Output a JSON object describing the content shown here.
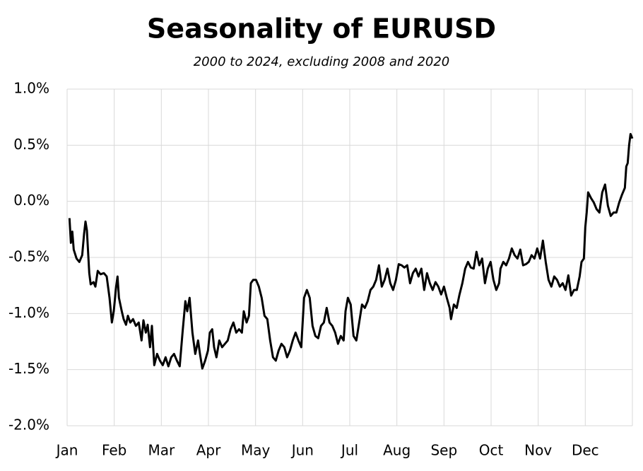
{
  "chart_data": {
    "type": "line",
    "title": "Seasonality of EURUSD",
    "subtitle": "2000 to 2024, excluding 2008 and 2020",
    "xlim": [
      0,
      12
    ],
    "xticks": [
      {
        "value": 0,
        "label": "Jan"
      },
      {
        "value": 1,
        "label": "Feb"
      },
      {
        "value": 2,
        "label": "Mar"
      },
      {
        "value": 3,
        "label": "Apr"
      },
      {
        "value": 4,
        "label": "May"
      },
      {
        "value": 5,
        "label": "Jun"
      },
      {
        "value": 6,
        "label": "Jul"
      },
      {
        "value": 7,
        "label": "Aug"
      },
      {
        "value": 8,
        "label": "Sep"
      },
      {
        "value": 9,
        "label": "Oct"
      },
      {
        "value": 10,
        "label": "Nov"
      },
      {
        "value": 11,
        "label": "Dec"
      }
    ],
    "ylim": [
      -2,
      1
    ],
    "yticks": [
      {
        "value": -2,
        "label": "-2.0%"
      },
      {
        "value": -1.5,
        "label": "-1.5%"
      },
      {
        "value": -1,
        "label": "-1.0%"
      },
      {
        "value": -0.5,
        "label": "-0.5%"
      },
      {
        "value": 0,
        "label": "0.0%"
      },
      {
        "value": 0.5,
        "label": "0.5%"
      },
      {
        "value": 1,
        "label": "1.0%"
      }
    ],
    "grid": true,
    "color": "#000000",
    "x": [
      0.05,
      0.08,
      0.11,
      0.14,
      0.2,
      0.26,
      0.32,
      0.36,
      0.39,
      0.42,
      0.47,
      0.5,
      0.56,
      0.6,
      0.65,
      0.71,
      0.78,
      0.84,
      0.9,
      0.95,
      0.99,
      1.04,
      1.07,
      1.1,
      1.16,
      1.2,
      1.25,
      1.29,
      1.34,
      1.4,
      1.46,
      1.52,
      1.58,
      1.62,
      1.67,
      1.71,
      1.76,
      1.8,
      1.85,
      1.91,
      1.97,
      2.03,
      2.09,
      2.15,
      2.21,
      2.27,
      2.33,
      2.39,
      2.45,
      2.51,
      2.55,
      2.6,
      2.66,
      2.72,
      2.78,
      2.82,
      2.87,
      2.93,
      2.99,
      3.03,
      3.08,
      3.12,
      3.17,
      3.23,
      3.29,
      3.35,
      3.41,
      3.47,
      3.53,
      3.59,
      3.65,
      3.71,
      3.75,
      3.81,
      3.86,
      3.9,
      3.95,
      4.01,
      4.07,
      4.13,
      4.19,
      4.25,
      4.31,
      4.37,
      4.43,
      4.49,
      4.55,
      4.61,
      4.67,
      4.73,
      4.79,
      4.85,
      4.91,
      4.97,
      5.03,
      5.09,
      5.15,
      5.21,
      5.27,
      5.33,
      5.39,
      5.45,
      5.51,
      5.57,
      5.63,
      5.69,
      5.75,
      5.81,
      5.87,
      5.91,
      5.96,
      6.02,
      6.08,
      6.14,
      6.2,
      6.26,
      6.32,
      6.38,
      6.44,
      6.5,
      6.56,
      6.62,
      6.68,
      6.74,
      6.8,
      6.86,
      6.92,
      6.98,
      7.04,
      7.1,
      7.16,
      7.22,
      7.28,
      7.34,
      7.4,
      7.46,
      7.52,
      7.58,
      7.64,
      7.7,
      7.76,
      7.82,
      7.88,
      7.94,
      8.0,
      8.06,
      8.12,
      8.15,
      8.21,
      8.27,
      8.33,
      8.39,
      8.45,
      8.51,
      8.57,
      8.63,
      8.69,
      8.75,
      8.81,
      8.87,
      8.93,
      8.99,
      9.05,
      9.11,
      9.17,
      9.2,
      9.26,
      9.32,
      9.38,
      9.44,
      9.5,
      9.56,
      9.62,
      9.68,
      9.74,
      9.8,
      9.86,
      9.92,
      9.98,
      10.04,
      10.1,
      10.16,
      10.22,
      10.28,
      10.34,
      10.4,
      10.46,
      10.52,
      10.58,
      10.64,
      10.7,
      10.76,
      10.82,
      10.88,
      10.92,
      10.97,
      11.0,
      11.03,
      11.06,
      11.12,
      11.18,
      11.24,
      11.3,
      11.36,
      11.42,
      11.48,
      11.54,
      11.6,
      11.66,
      11.72,
      11.78,
      11.84,
      11.87,
      11.9,
      11.93,
      11.96,
      12.0
    ],
    "values": [
      -0.15,
      -0.37,
      -0.27,
      -0.43,
      -0.51,
      -0.54,
      -0.48,
      -0.29,
      -0.18,
      -0.26,
      -0.64,
      -0.74,
      -0.72,
      -0.76,
      -0.62,
      -0.65,
      -0.64,
      -0.67,
      -0.86,
      -1.08,
      -0.98,
      -0.76,
      -0.67,
      -0.86,
      -0.98,
      -1.05,
      -1.1,
      -1.02,
      -1.08,
      -1.05,
      -1.11,
      -1.08,
      -1.24,
      -1.06,
      -1.17,
      -1.1,
      -1.3,
      -1.11,
      -1.46,
      -1.36,
      -1.42,
      -1.46,
      -1.39,
      -1.47,
      -1.39,
      -1.36,
      -1.42,
      -1.47,
      -1.17,
      -0.89,
      -0.98,
      -0.86,
      -1.17,
      -1.36,
      -1.24,
      -1.36,
      -1.49,
      -1.42,
      -1.33,
      -1.17,
      -1.14,
      -1.3,
      -1.39,
      -1.24,
      -1.3,
      -1.27,
      -1.24,
      -1.14,
      -1.08,
      -1.17,
      -1.14,
      -1.17,
      -0.98,
      -1.08,
      -1.02,
      -0.73,
      -0.7,
      -0.7,
      -0.76,
      -0.86,
      -1.02,
      -1.05,
      -1.24,
      -1.39,
      -1.42,
      -1.33,
      -1.27,
      -1.3,
      -1.39,
      -1.33,
      -1.24,
      -1.17,
      -1.24,
      -1.3,
      -0.86,
      -0.79,
      -0.86,
      -1.11,
      -1.2,
      -1.22,
      -1.11,
      -1.08,
      -0.95,
      -1.08,
      -1.11,
      -1.17,
      -1.27,
      -1.2,
      -1.24,
      -0.98,
      -0.86,
      -0.92,
      -1.2,
      -1.24,
      -1.08,
      -0.92,
      -0.95,
      -0.89,
      -0.79,
      -0.76,
      -0.7,
      -0.57,
      -0.76,
      -0.7,
      -0.6,
      -0.73,
      -0.79,
      -0.7,
      -0.56,
      -0.57,
      -0.59,
      -0.57,
      -0.73,
      -0.64,
      -0.6,
      -0.67,
      -0.6,
      -0.79,
      -0.64,
      -0.73,
      -0.79,
      -0.72,
      -0.76,
      -0.83,
      -0.76,
      -0.86,
      -0.95,
      -1.05,
      -0.92,
      -0.95,
      -0.83,
      -0.73,
      -0.6,
      -0.54,
      -0.59,
      -0.6,
      -0.45,
      -0.57,
      -0.51,
      -0.73,
      -0.6,
      -0.54,
      -0.7,
      -0.79,
      -0.73,
      -0.6,
      -0.54,
      -0.57,
      -0.51,
      -0.42,
      -0.48,
      -0.51,
      -0.43,
      -0.57,
      -0.56,
      -0.54,
      -0.48,
      -0.51,
      -0.42,
      -0.51,
      -0.35,
      -0.54,
      -0.7,
      -0.76,
      -0.67,
      -0.7,
      -0.76,
      -0.73,
      -0.79,
      -0.66,
      -0.84,
      -0.79,
      -0.79,
      -0.67,
      -0.54,
      -0.51,
      -0.23,
      -0.1,
      0.08,
      0.03,
      -0.01,
      -0.07,
      -0.1,
      0.08,
      0.15,
      -0.04,
      -0.13,
      -0.1,
      -0.1,
      -0.01,
      0.06,
      0.12,
      0.31,
      0.34,
      0.5,
      0.6,
      0.56
    ]
  }
}
